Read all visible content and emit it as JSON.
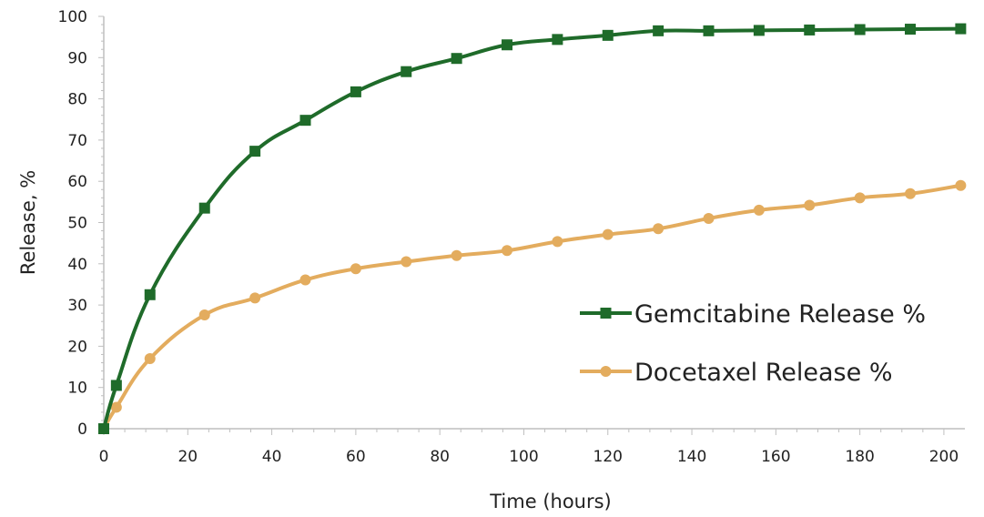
{
  "chart_data": {
    "type": "line",
    "title": "",
    "xlabel": "Time (hours)",
    "ylabel": "Release,  %",
    "xlim": [
      0,
      205
    ],
    "ylim": [
      0,
      100
    ],
    "x_ticks": [
      0,
      20,
      40,
      60,
      80,
      100,
      120,
      140,
      160,
      180,
      200
    ],
    "y_ticks": [
      0,
      10,
      20,
      30,
      40,
      50,
      60,
      70,
      80,
      90,
      100
    ],
    "grid": false,
    "legend_position": "right",
    "series": [
      {
        "name": "Gemcitabine Release %",
        "color": "#1f6b2a",
        "marker": "square",
        "x": [
          0,
          3,
          11,
          24,
          36,
          48,
          60,
          72,
          84,
          96,
          108,
          120,
          132,
          144,
          156,
          168,
          180,
          192,
          204
        ],
        "y": [
          0,
          10.5,
          32.5,
          53.5,
          67.3,
          74.8,
          81.7,
          86.6,
          89.8,
          93.1,
          94.4,
          95.4,
          96.5,
          96.5,
          96.6,
          96.7,
          96.8,
          96.9,
          97.0
        ]
      },
      {
        "name": "Docetaxel Release %",
        "color": "#e3ac5e",
        "marker": "circle",
        "x": [
          0,
          3,
          11,
          24,
          36,
          48,
          60,
          72,
          84,
          96,
          108,
          120,
          132,
          144,
          156,
          168,
          180,
          192,
          204
        ],
        "y": [
          0,
          5.2,
          17.0,
          27.6,
          31.7,
          36.1,
          38.8,
          40.5,
          42.0,
          43.2,
          45.4,
          47.1,
          48.5,
          51.0,
          53.0,
          54.2,
          56.0,
          57.0,
          59.0
        ]
      }
    ]
  }
}
